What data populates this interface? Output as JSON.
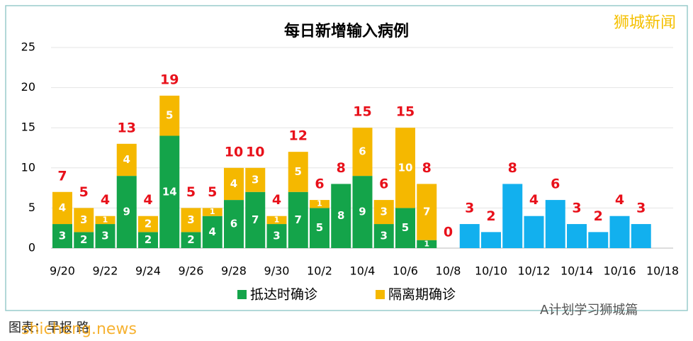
{
  "chart_data": {
    "type": "bar",
    "stacked": true,
    "title": "每日新增输入病例",
    "categories": [
      "9/20",
      null,
      "9/22",
      null,
      "9/24",
      null,
      "9/26",
      null,
      "9/28",
      null,
      "9/30",
      null,
      "10/2",
      null,
      "10/4",
      null,
      "10/6",
      null,
      "10/8",
      null,
      "10/10",
      null,
      "10/12",
      null,
      "10/14",
      null,
      "10/16",
      null,
      "10/18"
    ],
    "series": [
      {
        "name": "抵达时确诊",
        "color": "#14a44a",
        "values": [
          3,
          2,
          3,
          9,
          2,
          14,
          2,
          4,
          6,
          7,
          3,
          7,
          5,
          8,
          9,
          3,
          5,
          1,
          0,
          null,
          null,
          null,
          null,
          null,
          null,
          null,
          null,
          null,
          null
        ]
      },
      {
        "name": "隔离期确诊",
        "color": "#f5b800",
        "values": [
          4,
          3,
          1,
          4,
          2,
          5,
          3,
          1,
          4,
          3,
          1,
          5,
          1,
          0,
          6,
          3,
          10,
          7,
          0,
          null,
          null,
          null,
          null,
          null,
          null,
          null,
          null,
          null,
          null
        ]
      },
      {
        "color": "#12b0ee",
        "values": [
          null,
          null,
          null,
          null,
          null,
          null,
          null,
          null,
          null,
          null,
          null,
          null,
          null,
          null,
          null,
          null,
          null,
          null,
          null,
          3,
          2,
          8,
          4,
          6,
          3,
          2,
          4,
          3,
          null
        ]
      }
    ],
    "totals": [
      7,
      5,
      4,
      13,
      4,
      19,
      5,
      5,
      10,
      10,
      4,
      12,
      6,
      8,
      15,
      6,
      15,
      8,
      0,
      3,
      2,
      8,
      4,
      6,
      3,
      2,
      4,
      3,
      null
    ],
    "totals_color": "#e8101a",
    "ylim": [
      0,
      25
    ],
    "yticks": [
      0,
      5,
      10,
      15,
      20,
      25
    ],
    "grid": true
  },
  "watermark": "狮城新闻",
  "caption": "图表：早报 路",
  "site": "shicheng.news",
  "wechat": "A计划学习狮城篇"
}
